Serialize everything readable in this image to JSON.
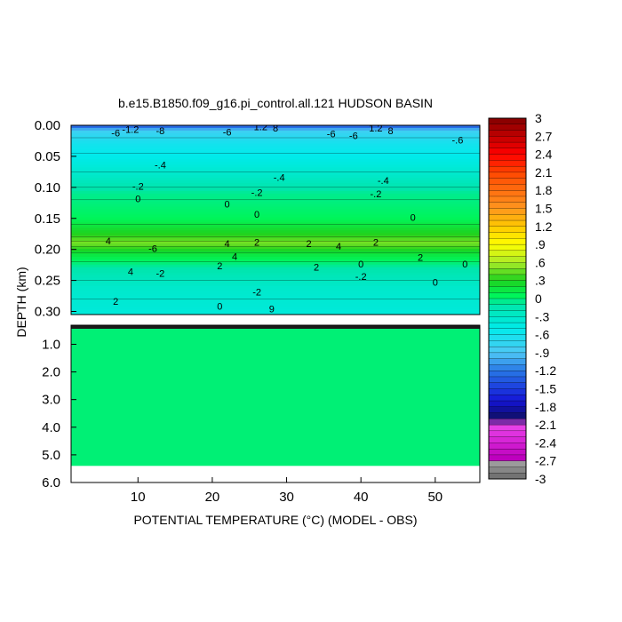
{
  "chart_data": {
    "type": "heatmap",
    "title": "b.e15.B1850.f09_g16.pi_control.all.121 HUDSON BASIN",
    "xlabel": "POTENTIAL TEMPERATURE (°C) (MODEL - OBS)",
    "ylabel": "DEPTH (km)",
    "xlim": [
      1,
      56
    ],
    "x_ticks": [
      "10",
      "20",
      "30",
      "40",
      "50"
    ],
    "x_tick_values": [
      10,
      20,
      30,
      40,
      50
    ],
    "upper_panel": {
      "ylim": [
        0,
        0.305
      ],
      "y_ticks": [
        "0.00",
        "0.05",
        "0.10",
        "0.15",
        "0.20",
        "0.25",
        "0.30"
      ],
      "y_tick_values": [
        0,
        0.05,
        0.1,
        0.15,
        0.2,
        0.25,
        0.3
      ],
      "depth_profile": [
        {
          "depth": 0.0,
          "value": -1.4
        },
        {
          "depth": 0.01,
          "value": -0.8
        },
        {
          "depth": 0.03,
          "value": -0.6
        },
        {
          "depth": 0.05,
          "value": -0.5
        },
        {
          "depth": 0.08,
          "value": -0.3
        },
        {
          "depth": 0.11,
          "value": -0.05
        },
        {
          "depth": 0.15,
          "value": 0.05
        },
        {
          "depth": 0.175,
          "value": 0.3
        },
        {
          "depth": 0.19,
          "value": 0.5
        },
        {
          "depth": 0.205,
          "value": 0.2
        },
        {
          "depth": 0.23,
          "value": -0.1
        },
        {
          "depth": 0.26,
          "value": -0.3
        },
        {
          "depth": 0.305,
          "value": -0.4
        }
      ],
      "contour_labels": [
        {
          "text": "1.2",
          "x": 26.5,
          "depth": 0.004
        },
        {
          "text": "8",
          "x": 28.5,
          "depth": 0.006
        },
        {
          "text": "1.2",
          "x": 42.0,
          "depth": 0.006
        },
        {
          "text": "8",
          "x": 44.0,
          "depth": 0.01
        },
        {
          "text": "-1.2",
          "x": 9.0,
          "depth": 0.008
        },
        {
          "text": "-8",
          "x": 13.0,
          "depth": 0.01
        },
        {
          "text": "-6",
          "x": 7.0,
          "depth": 0.014
        },
        {
          "text": "-6",
          "x": 22.0,
          "depth": 0.012
        },
        {
          "text": "-6",
          "x": 36.0,
          "depth": 0.015
        },
        {
          "text": "-6",
          "x": 39.0,
          "depth": 0.018
        },
        {
          "text": "-.6",
          "x": 53.0,
          "depth": 0.025
        },
        {
          "text": "-.4",
          "x": 13.0,
          "depth": 0.065
        },
        {
          "text": "-.4",
          "x": 29.0,
          "depth": 0.085
        },
        {
          "text": "-.4",
          "x": 43.0,
          "depth": 0.09
        },
        {
          "text": "-.2",
          "x": 10.0,
          "depth": 0.1
        },
        {
          "text": "-.2",
          "x": 26.0,
          "depth": 0.11
        },
        {
          "text": "-.2",
          "x": 42.0,
          "depth": 0.112
        },
        {
          "text": "0",
          "x": 10.0,
          "depth": 0.12
        },
        {
          "text": "0",
          "x": 22.0,
          "depth": 0.128
        },
        {
          "text": "0",
          "x": 26.0,
          "depth": 0.145
        },
        {
          "text": "0",
          "x": 47.0,
          "depth": 0.15
        },
        {
          "text": "4",
          "x": 6.0,
          "depth": 0.188
        },
        {
          "text": "4",
          "x": 22.0,
          "depth": 0.192
        },
        {
          "text": "2",
          "x": 26.0,
          "depth": 0.19
        },
        {
          "text": "2",
          "x": 42.0,
          "depth": 0.19
        },
        {
          "text": "4",
          "x": 37.0,
          "depth": 0.196
        },
        {
          "text": "2",
          "x": 33.0,
          "depth": 0.192
        },
        {
          "text": "-6",
          "x": 12.0,
          "depth": 0.2
        },
        {
          "text": "4",
          "x": 23.0,
          "depth": 0.213
        },
        {
          "text": "2",
          "x": 21.0,
          "depth": 0.228
        },
        {
          "text": "2",
          "x": 34.0,
          "depth": 0.23
        },
        {
          "text": "0",
          "x": 40.0,
          "depth": 0.225
        },
        {
          "text": "2",
          "x": 48.0,
          "depth": 0.214
        },
        {
          "text": "0",
          "x": 54.0,
          "depth": 0.225
        },
        {
          "text": "4",
          "x": 9.0,
          "depth": 0.237
        },
        {
          "text": "-2",
          "x": 13.0,
          "depth": 0.24
        },
        {
          "text": "-.2",
          "x": 40.0,
          "depth": 0.245
        },
        {
          "text": "0",
          "x": 50.0,
          "depth": 0.254
        },
        {
          "text": "-2",
          "x": 26.0,
          "depth": 0.27
        },
        {
          "text": "2",
          "x": 7.0,
          "depth": 0.285
        },
        {
          "text": "0",
          "x": 21.0,
          "depth": 0.293
        },
        {
          "text": "9",
          "x": 28.0,
          "depth": 0.297
        }
      ]
    },
    "lower_panel": {
      "ylim": [
        0.31,
        6.0
      ],
      "y_ticks": [
        "1.0",
        "2.0",
        "3.0",
        "4.0",
        "5.0",
        "6.0"
      ],
      "y_tick_values": [
        1,
        2,
        3,
        4,
        5,
        6
      ],
      "fill_value": 0.0,
      "data_max_depth": 5.4
    },
    "colorbar": {
      "range": [
        -3,
        3
      ],
      "step": 0.1,
      "tick_labels": [
        "3",
        "2.7",
        "2.4",
        "2.1",
        "1.8",
        "1.5",
        "1.2",
        ".9",
        ".6",
        ".3",
        "0",
        "-.3",
        "-.6",
        "-.9",
        "-1.2",
        "-1.5",
        "-1.8",
        "-2.1",
        "-2.4",
        "-2.7",
        "-3"
      ],
      "tick_values": [
        3,
        2.7,
        2.4,
        2.1,
        1.8,
        1.5,
        1.2,
        0.9,
        0.6,
        0.3,
        0,
        -0.3,
        -0.6,
        -0.9,
        -1.2,
        -1.5,
        -1.8,
        -2.1,
        -2.4,
        -2.7,
        -3
      ]
    }
  }
}
